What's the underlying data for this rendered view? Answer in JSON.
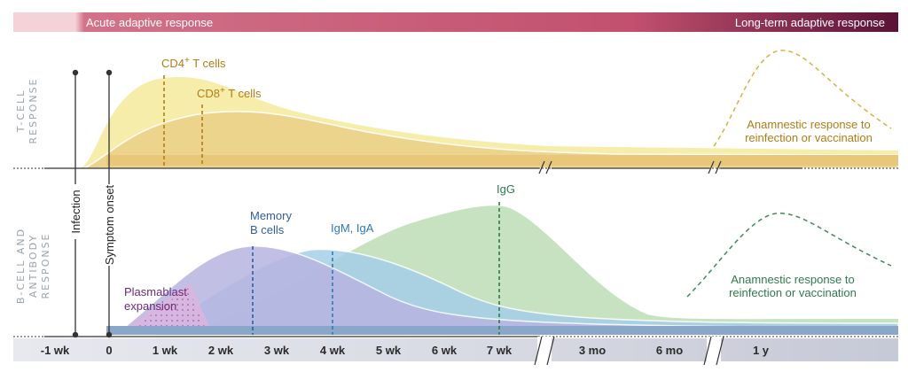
{
  "header": {
    "acute_label": "Acute adaptive response",
    "longterm_label": "Long-term adaptive response"
  },
  "panels": {
    "t_cell_label": [
      "T-CELL",
      "RESPONSE"
    ],
    "b_cell_label": [
      "B-CELL AND",
      "ANTIBODY",
      "RESPONSE"
    ]
  },
  "markers": {
    "infection": "Infection",
    "symptom_onset": "Symptom onset"
  },
  "t_cell": {
    "cd4_label": "CD4",
    "cd8_label": "CD8",
    "cells_suffix": " T cells",
    "superscript": "+",
    "anamnestic": [
      "Anamnestic response to",
      "reinfection or vaccination"
    ]
  },
  "b_cell": {
    "plasmablast": [
      "Plasmablast",
      "expansion"
    ],
    "memory": [
      "Memory",
      "B cells"
    ],
    "igm_iga": "IgM, IgA",
    "igg": "IgG",
    "anamnestic": [
      "Anamnestic response to",
      "reinfection or vaccination"
    ]
  },
  "axis": {
    "ticks": [
      "-1 wk",
      "0",
      "1 wk",
      "2 wk",
      "3 wk",
      "4 wk",
      "5 wk",
      "6 wk",
      "7 wk",
      "3 mo",
      "6 mo",
      "1 y"
    ]
  },
  "colors": {
    "header_start": "#f0c9cf",
    "header_mid": "#c2506e",
    "header_end": "#5a1237",
    "cd4": "#f6eca6",
    "cd8": "#ecd28a",
    "t_baseline": "#e8c77a",
    "plasmablast": "#b37cc2",
    "memory": "#b7b4e0",
    "igm": "#a5cfe9",
    "igg": "#c4e0bd",
    "b_baseline": "#8aa6c9",
    "cd4_text": "#b07d16",
    "igm_text": "#2f79b5",
    "igg_text": "#2f7a4c",
    "plasmablast_text": "#6b2a78"
  }
}
